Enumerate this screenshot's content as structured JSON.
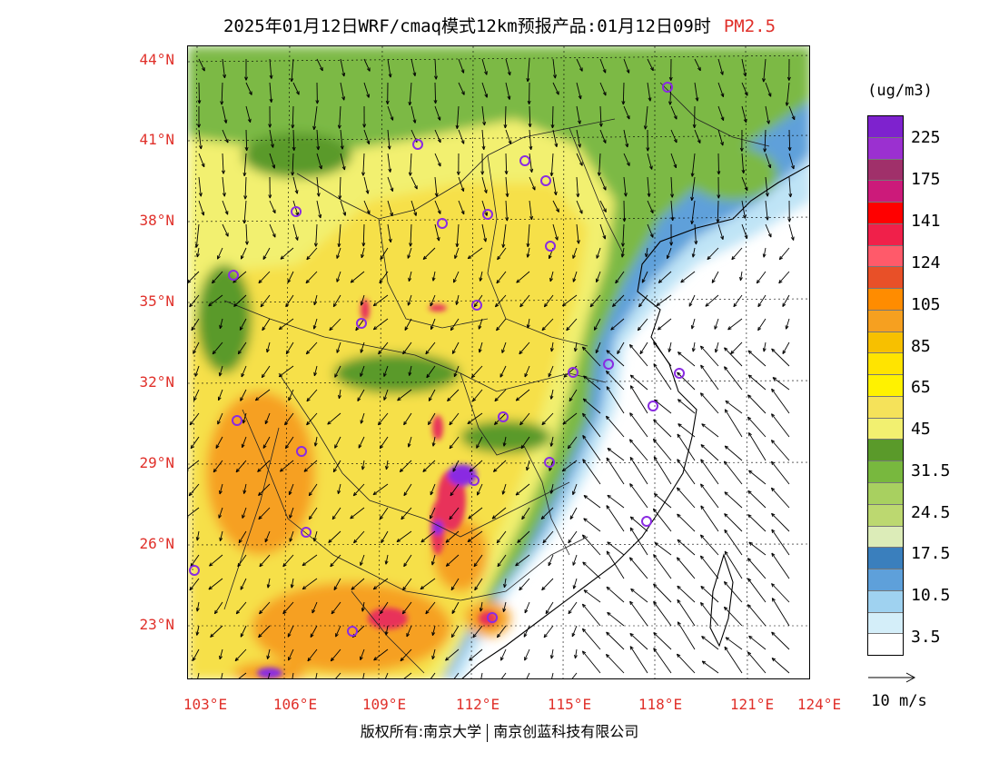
{
  "header": {
    "title": "2025年01月12日WRF/cmaq模式12km预报产品:01月12日09时",
    "variable": "PM2.5",
    "variable_color": "#e0302a"
  },
  "axes": {
    "lat_labels": [
      "44°N",
      "41°N",
      "38°N",
      "35°N",
      "32°N",
      "29°N",
      "26°N",
      "23°N"
    ],
    "lon_labels": [
      "103°E",
      "106°E",
      "109°E",
      "112°E",
      "115°E",
      "118°E",
      "121°E",
      "124°E"
    ],
    "label_color": "#e0302a"
  },
  "colorbar": {
    "unit": "(ug/m3)",
    "levels": [
      "225",
      "175",
      "141",
      "124",
      "105",
      "85",
      "65",
      "45",
      "31.5",
      "24.5",
      "17.5",
      "10.5",
      "3.5"
    ],
    "colors": [
      "#7e22ce",
      "#9b30d0",
      "#a0306a",
      "#cc1a7a",
      "#ff0000",
      "#f0204a",
      "#ff5a6a",
      "#e85028",
      "#ff8c00",
      "#f6a020",
      "#f7c000",
      "#ffe400",
      "#fff200",
      "#f5e25a",
      "#f2f070",
      "#5a9a2a",
      "#78b83e",
      "#a8d060",
      "#bcd870",
      "#dcecb8",
      "#3a7fbd",
      "#5ea0da",
      "#9fd2f0",
      "#d4eef9",
      "#ffffff"
    ]
  },
  "wind_reference": {
    "label": "10 m/s"
  },
  "footer": {
    "copyright_left": "版权所有:南京大学",
    "copyright_right": "南京创蓝科技有限公司"
  },
  "map_colors": {
    "clean": "#ffffff",
    "light_blue": "#bfe4f6",
    "blue": "#5ea0da",
    "green": "#7cb944",
    "dark_green": "#5a9a2a",
    "yellow_green": "#f2f070",
    "yellow": "#f6e04a",
    "orange": "#f6a020",
    "red": "#e8305a",
    "purple": "#8a2be2"
  }
}
